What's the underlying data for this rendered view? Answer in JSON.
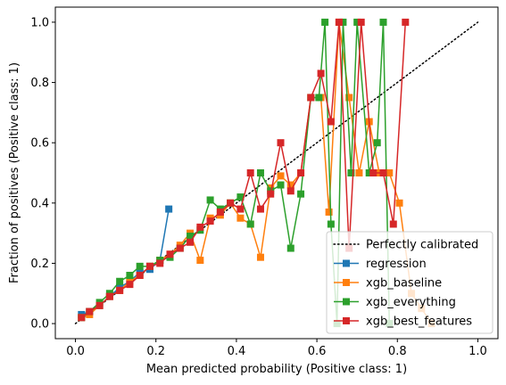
{
  "chart_data": {
    "type": "line",
    "xlabel": "Mean predicted probability (Positive class: 1)",
    "ylabel": "Fraction of positives (Positive class: 1)",
    "xlim": [
      -0.05,
      1.05
    ],
    "ylim": [
      -0.05,
      1.05
    ],
    "xticks": [
      "0.0",
      "0.2",
      "0.4",
      "0.6",
      "0.8",
      "1.0"
    ],
    "xtick_values": [
      0,
      0.2,
      0.4,
      0.6,
      0.8,
      1.0
    ],
    "yticks": [
      "0.0",
      "0.2",
      "0.4",
      "0.6",
      "0.8",
      "1.0"
    ],
    "ytick_values": [
      0,
      0.2,
      0.4,
      0.6,
      0.8,
      1.0
    ],
    "grid": false,
    "legend_position": "lower-right",
    "reference_line": {
      "name": "Perfectly calibrated",
      "x": [
        0,
        1
      ],
      "y": [
        0,
        1
      ],
      "color": "#000000",
      "style": "dotted"
    },
    "series": [
      {
        "name": "regression",
        "color": "#1f77b4",
        "x": [
          0.015,
          0.035,
          0.06,
          0.085,
          0.11,
          0.135,
          0.16,
          0.185,
          0.21,
          0.232
        ],
        "y": [
          0.03,
          0.04,
          0.06,
          0.09,
          0.12,
          0.14,
          0.17,
          0.18,
          0.21,
          0.38
        ]
      },
      {
        "name": "xgb_baseline",
        "color": "#ff7f0e",
        "x": [
          0.015,
          0.035,
          0.06,
          0.085,
          0.11,
          0.135,
          0.16,
          0.185,
          0.21,
          0.235,
          0.26,
          0.285,
          0.31,
          0.335,
          0.36,
          0.385,
          0.41,
          0.435,
          0.46,
          0.485,
          0.51,
          0.535,
          0.56,
          0.585,
          0.61,
          0.63,
          0.655,
          0.68,
          0.705,
          0.73,
          0.755,
          0.78,
          0.805,
          0.835,
          0.86,
          0.885
        ],
        "y": [
          0.02,
          0.03,
          0.06,
          0.09,
          0.11,
          0.14,
          0.16,
          0.19,
          0.21,
          0.23,
          0.26,
          0.3,
          0.21,
          0.35,
          0.36,
          0.4,
          0.35,
          0.33,
          0.22,
          0.45,
          0.49,
          0.46,
          0.5,
          0.75,
          0.75,
          0.37,
          1.0,
          0.75,
          0.5,
          0.67,
          0.5,
          0.5,
          0.4,
          0.1,
          0.05,
          0.0
        ]
      },
      {
        "name": "xgb_everything",
        "color": "#2ca02c",
        "x": [
          0.015,
          0.035,
          0.06,
          0.085,
          0.11,
          0.135,
          0.16,
          0.185,
          0.21,
          0.235,
          0.26,
          0.285,
          0.31,
          0.335,
          0.36,
          0.385,
          0.41,
          0.435,
          0.46,
          0.485,
          0.51,
          0.535,
          0.56,
          0.585,
          0.605,
          0.62,
          0.635,
          0.65,
          0.665,
          0.685,
          0.7,
          0.73,
          0.75,
          0.765,
          0.78
        ],
        "y": [
          0.02,
          0.04,
          0.07,
          0.1,
          0.14,
          0.16,
          0.19,
          0.19,
          0.21,
          0.22,
          0.25,
          0.29,
          0.31,
          0.41,
          0.38,
          0.4,
          0.42,
          0.33,
          0.5,
          0.44,
          0.46,
          0.25,
          0.43,
          0.75,
          0.75,
          1.0,
          0.33,
          0.0,
          1.0,
          0.5,
          1.0,
          0.5,
          0.6,
          1.0,
          0.0
        ]
      },
      {
        "name": "xgb_best_features",
        "color": "#d62728",
        "x": [
          0.015,
          0.035,
          0.06,
          0.085,
          0.11,
          0.135,
          0.16,
          0.185,
          0.21,
          0.235,
          0.26,
          0.285,
          0.31,
          0.335,
          0.36,
          0.385,
          0.41,
          0.435,
          0.46,
          0.485,
          0.51,
          0.535,
          0.56,
          0.585,
          0.61,
          0.635,
          0.655,
          0.68,
          0.71,
          0.74,
          0.765,
          0.79,
          0.82
        ],
        "y": [
          0.02,
          0.04,
          0.06,
          0.09,
          0.11,
          0.13,
          0.16,
          0.19,
          0.2,
          0.23,
          0.25,
          0.27,
          0.32,
          0.34,
          0.37,
          0.4,
          0.38,
          0.5,
          0.38,
          0.43,
          0.6,
          0.44,
          0.5,
          0.75,
          0.83,
          0.67,
          1.0,
          0.25,
          1.0,
          0.5,
          0.5,
          0.33,
          1.0
        ]
      }
    ]
  }
}
